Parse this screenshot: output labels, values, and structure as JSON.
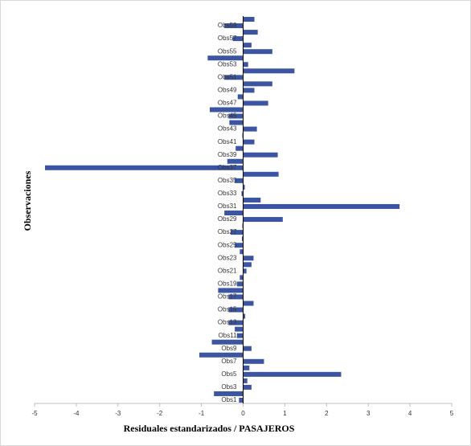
{
  "chart_data": {
    "type": "barh",
    "xlabel": "Residuales estandarizados / PASAJEROS",
    "ylabel": "Observaciones",
    "categories": [
      "Obs1",
      null,
      "Obs3",
      null,
      "Obs5",
      null,
      "Obs7",
      null,
      "Obs9",
      null,
      "Obs11",
      null,
      "Obs13",
      null,
      "Obs15",
      null,
      "Obs17",
      null,
      "Obs19",
      null,
      "Obs21",
      null,
      "Obs23",
      null,
      "Obs25",
      null,
      "Obs27",
      null,
      "Obs29",
      null,
      "Obs31",
      null,
      "Obs33",
      null,
      "Obs35",
      null,
      "Obs37",
      null,
      "Obs39",
      null,
      "Obs41",
      null,
      "Obs43",
      null,
      "Obs45",
      null,
      "Obs47",
      null,
      "Obs49",
      null,
      "Obs51",
      null,
      "Obs53",
      null,
      "Obs55",
      null,
      "Obs57",
      null,
      "Obs59",
      null
    ],
    "values": [
      -0.1,
      -0.7,
      0.2,
      0.1,
      2.35,
      0.15,
      0.5,
      -1.05,
      0.2,
      -0.75,
      -0.15,
      -0.2,
      -0.35,
      0.05,
      -0.35,
      0.25,
      -0.35,
      -0.6,
      -0.15,
      -0.08,
      0.08,
      0.2,
      0.25,
      -0.08,
      -0.2,
      -0.03,
      -0.3,
      -0.02,
      0.95,
      -0.45,
      3.75,
      0.42,
      -0.04,
      0.04,
      -0.2,
      0.85,
      -4.75,
      -0.38,
      0.83,
      -0.18,
      0.27,
      -0.02,
      0.33,
      -0.33,
      -0.35,
      -0.8,
      0.6,
      -0.13,
      0.27,
      0.7,
      -0.45,
      1.23,
      0.12,
      -0.85,
      0.7,
      0.2,
      -0.25,
      0.35,
      -0.45,
      0.27
    ],
    "color": "#3b55a3",
    "xlim": [
      -5,
      5
    ],
    "xticks": [
      -5,
      -4,
      -3,
      -2,
      -1,
      0,
      1,
      2,
      3,
      4,
      5
    ]
  }
}
